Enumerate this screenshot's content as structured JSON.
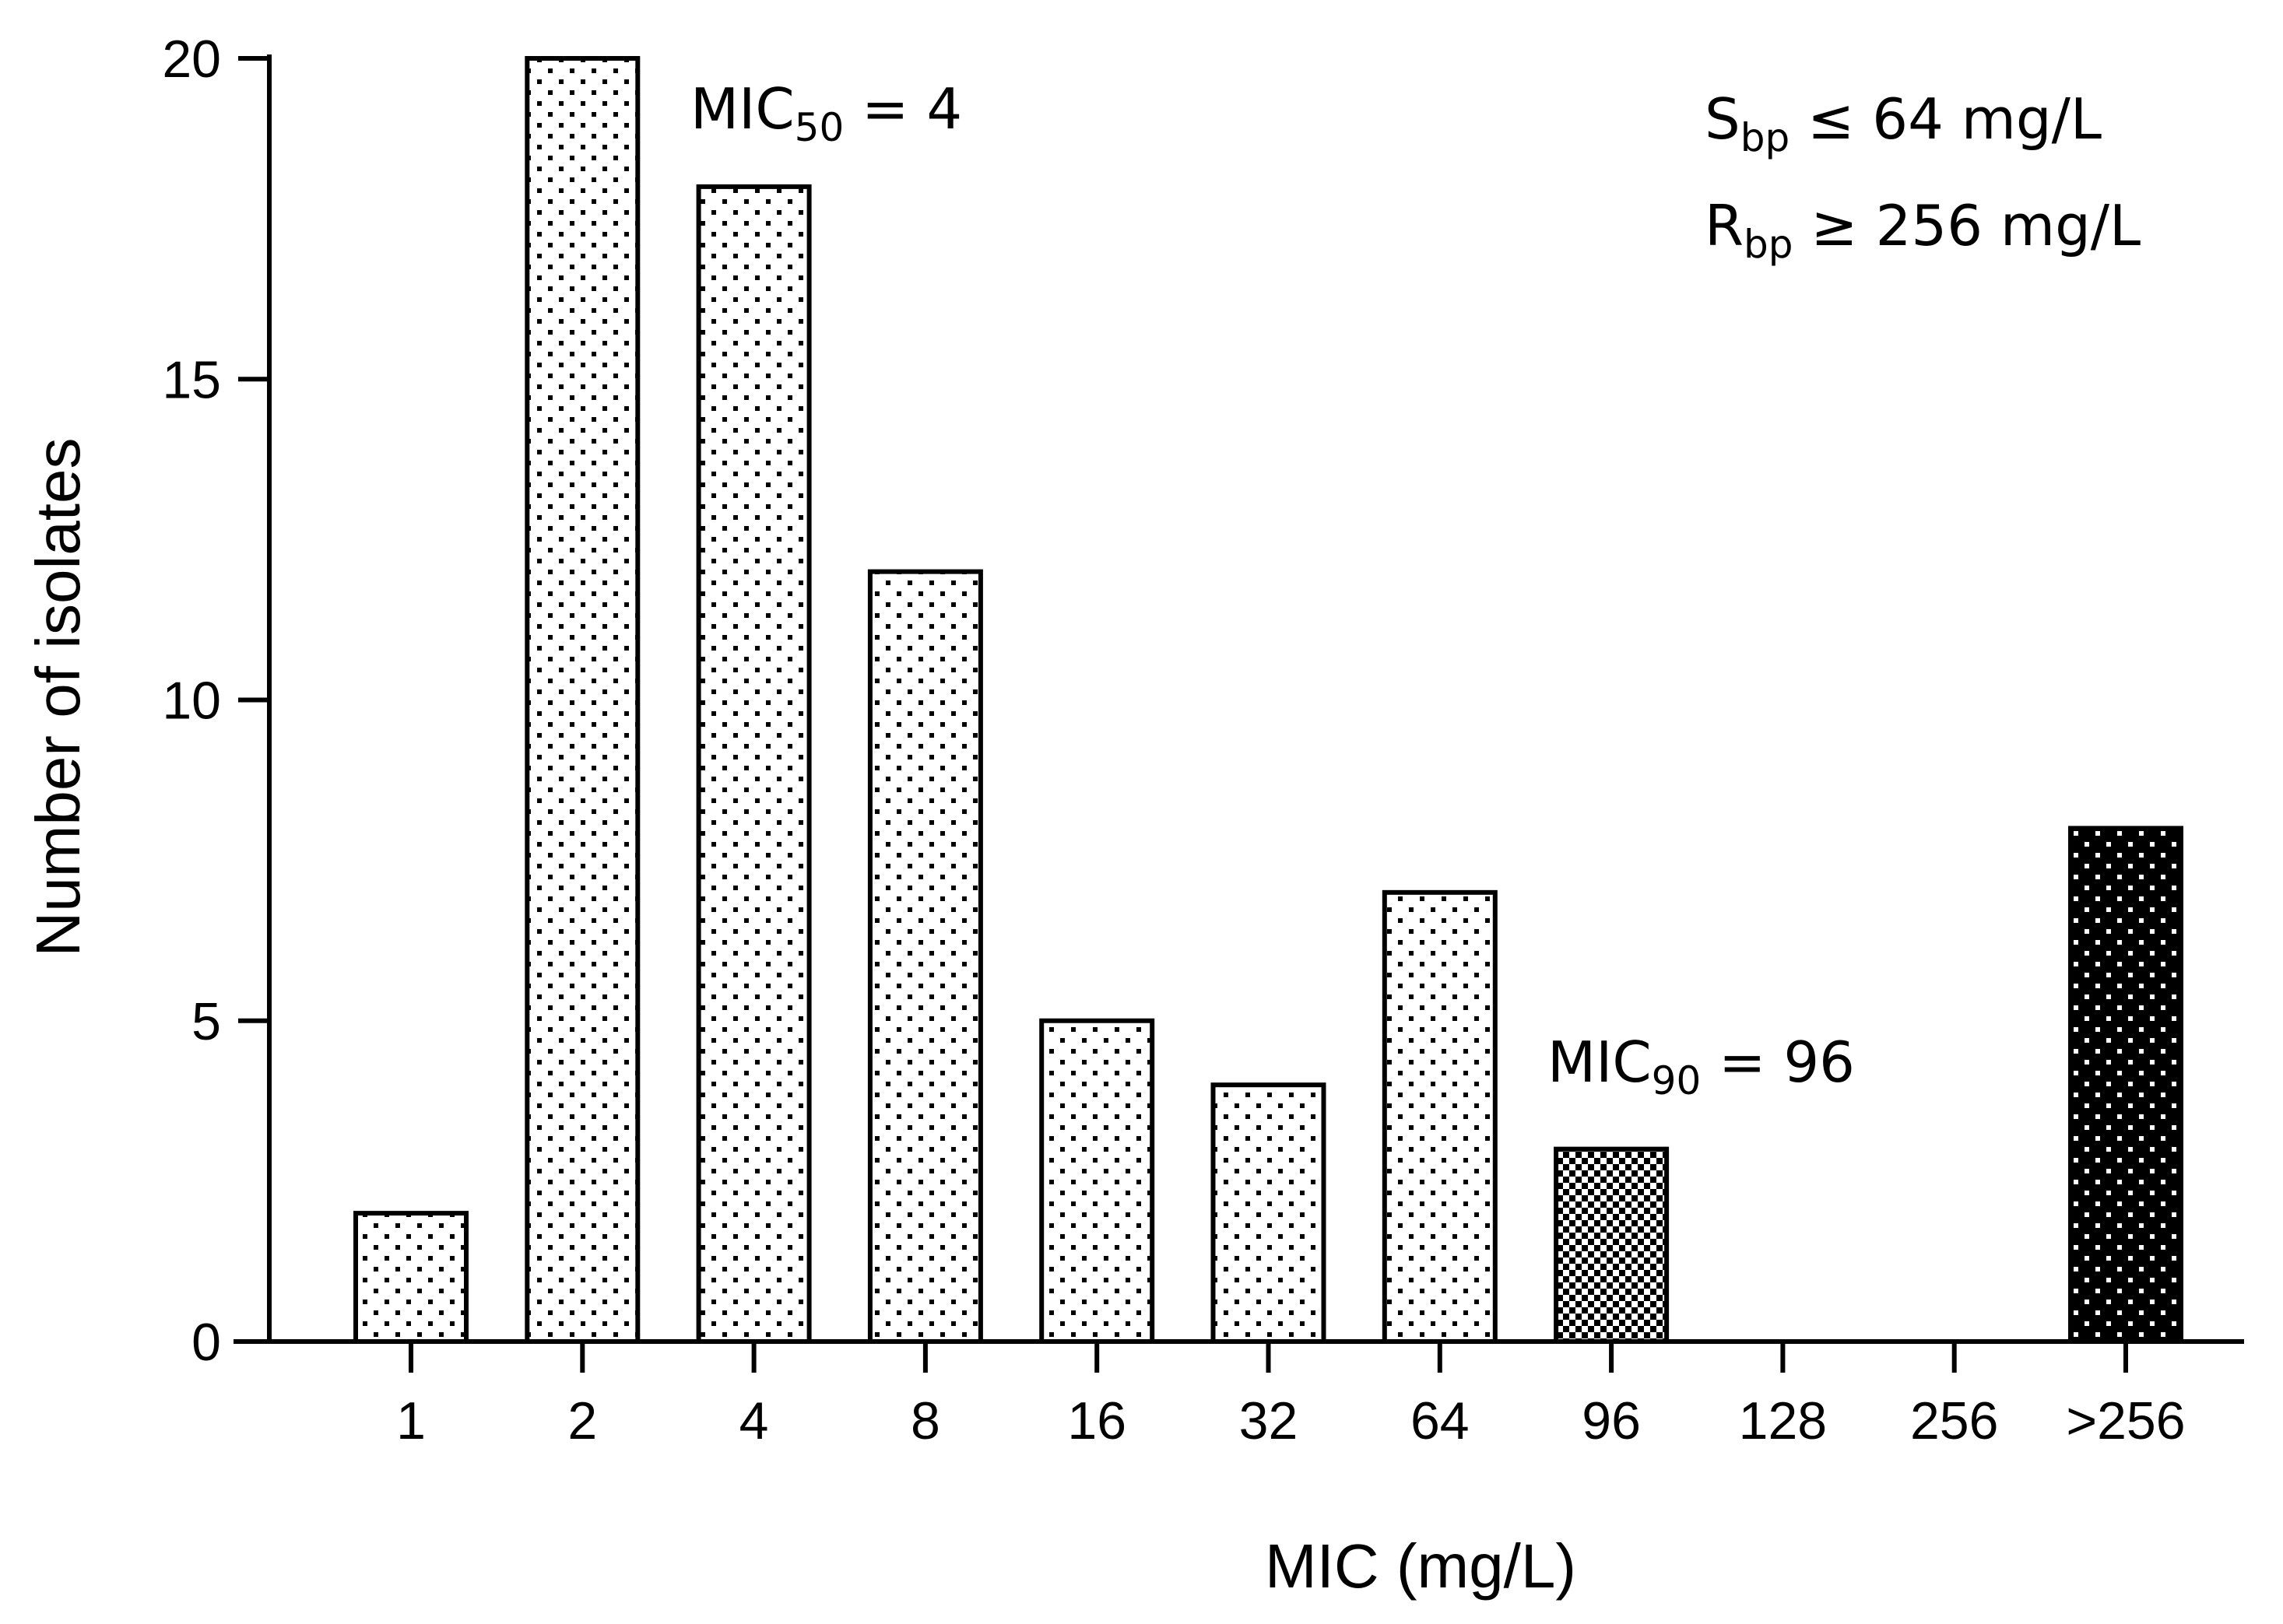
{
  "chart_data": {
    "type": "bar",
    "xlabel": "MIC (mg/L)",
    "ylabel": "Number of isolates",
    "ylim": [
      0,
      20
    ],
    "yticks": [
      0,
      5,
      10,
      15,
      20
    ],
    "categories": [
      "1",
      "2",
      "4",
      "8",
      "16",
      "32",
      "64",
      "96",
      "128",
      "256",
      ">256"
    ],
    "values": [
      2,
      20,
      18,
      12,
      5,
      4,
      7,
      3,
      0,
      0,
      8
    ],
    "bar_styles": [
      "sparse-dots",
      "sparse-dots",
      "sparse-dots",
      "sparse-dots",
      "sparse-dots",
      "sparse-dots",
      "sparse-dots",
      "checker",
      "sparse-dots",
      "sparse-dots",
      "dark-dots"
    ],
    "annotations": [
      {
        "id": "mic50",
        "base": "MIC",
        "sub": "50",
        "rest": " = 4"
      },
      {
        "id": "mic90",
        "base": "MIC",
        "sub": "90",
        "rest": " = 96"
      },
      {
        "id": "sbp",
        "base": "S",
        "sub": "bp",
        "rest": " ≤ 64 mg/L"
      },
      {
        "id": "rbp",
        "base": "R",
        "sub": "bp",
        "rest": " ≥ 256 mg/L"
      }
    ]
  },
  "colors": {
    "axis": "#000000",
    "background": "#ffffff",
    "dot_light_bg": "#ffffff",
    "dot_dark_bg": "#000000"
  }
}
